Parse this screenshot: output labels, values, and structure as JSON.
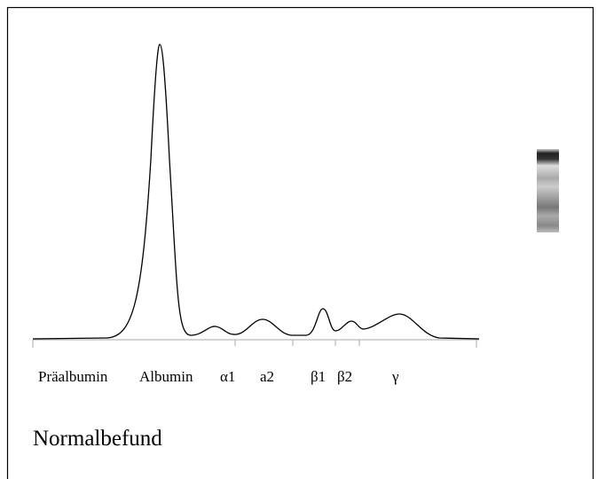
{
  "fractions": [
    "Präalbumin",
    "Albumin",
    "α1",
    "a2",
    "β1",
    "β2",
    "γ"
  ],
  "caption": "Normalbefund"
}
